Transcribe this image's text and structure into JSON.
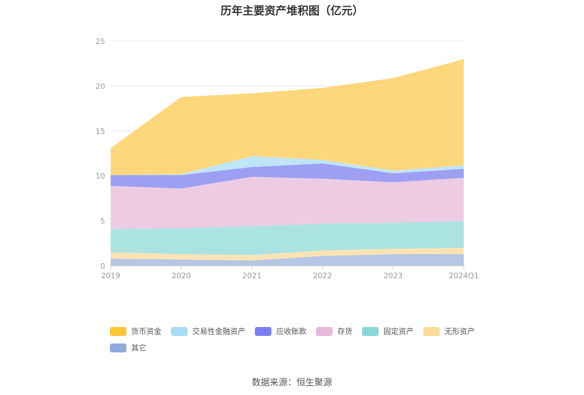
{
  "chart_data": {
    "type": "area",
    "stacked": true,
    "title": "历年主要资产堆积图（亿元）",
    "x": [
      "2019",
      "2020",
      "2021",
      "2022",
      "2023",
      "2024Q1"
    ],
    "ylim": [
      0,
      25
    ],
    "yticks": [
      0,
      5,
      10,
      15,
      20,
      25
    ],
    "grid": true,
    "legend_position": "bottom",
    "series": [
      {
        "name": "其它",
        "color": "#8eaadc",
        "fill": "#b5c6e6",
        "values": [
          0.8,
          0.7,
          0.6,
          1.1,
          1.3,
          1.3
        ]
      },
      {
        "name": "无形资产",
        "color": "#ffd99a",
        "fill": "#fde3b3",
        "values": [
          0.7,
          0.6,
          0.6,
          0.6,
          0.6,
          0.7
        ]
      },
      {
        "name": "固定资产",
        "color": "#88d8d8",
        "fill": "#abe3e2",
        "values": [
          2.6,
          2.9,
          3.2,
          3.0,
          2.9,
          3.0
        ]
      },
      {
        "name": "存货",
        "color": "#e7b8da",
        "fill": "#edcce3",
        "values": [
          4.8,
          4.4,
          5.5,
          5.0,
          4.5,
          4.8
        ]
      },
      {
        "name": "应收账款",
        "color": "#7b7ef1",
        "fill": "#9c9ff4",
        "values": [
          1.2,
          1.5,
          1.1,
          1.7,
          1.0,
          1.0
        ]
      },
      {
        "name": "交易性金融资产",
        "color": "#a8dcf6",
        "fill": "#bfe5f8",
        "values": [
          0.0,
          0.1,
          1.2,
          0.4,
          0.3,
          0.4
        ]
      },
      {
        "name": "货币资金",
        "color": "#fcc534",
        "fill": "#fed67b",
        "values": [
          3.0,
          8.6,
          7.0,
          8.0,
          10.3,
          11.8
        ]
      }
    ],
    "legend_order": [
      "货币资金",
      "交易性金融资产",
      "应收账款",
      "存货",
      "固定资产",
      "无形资产",
      "其它"
    ]
  },
  "source": "数据来源：恒生聚源"
}
